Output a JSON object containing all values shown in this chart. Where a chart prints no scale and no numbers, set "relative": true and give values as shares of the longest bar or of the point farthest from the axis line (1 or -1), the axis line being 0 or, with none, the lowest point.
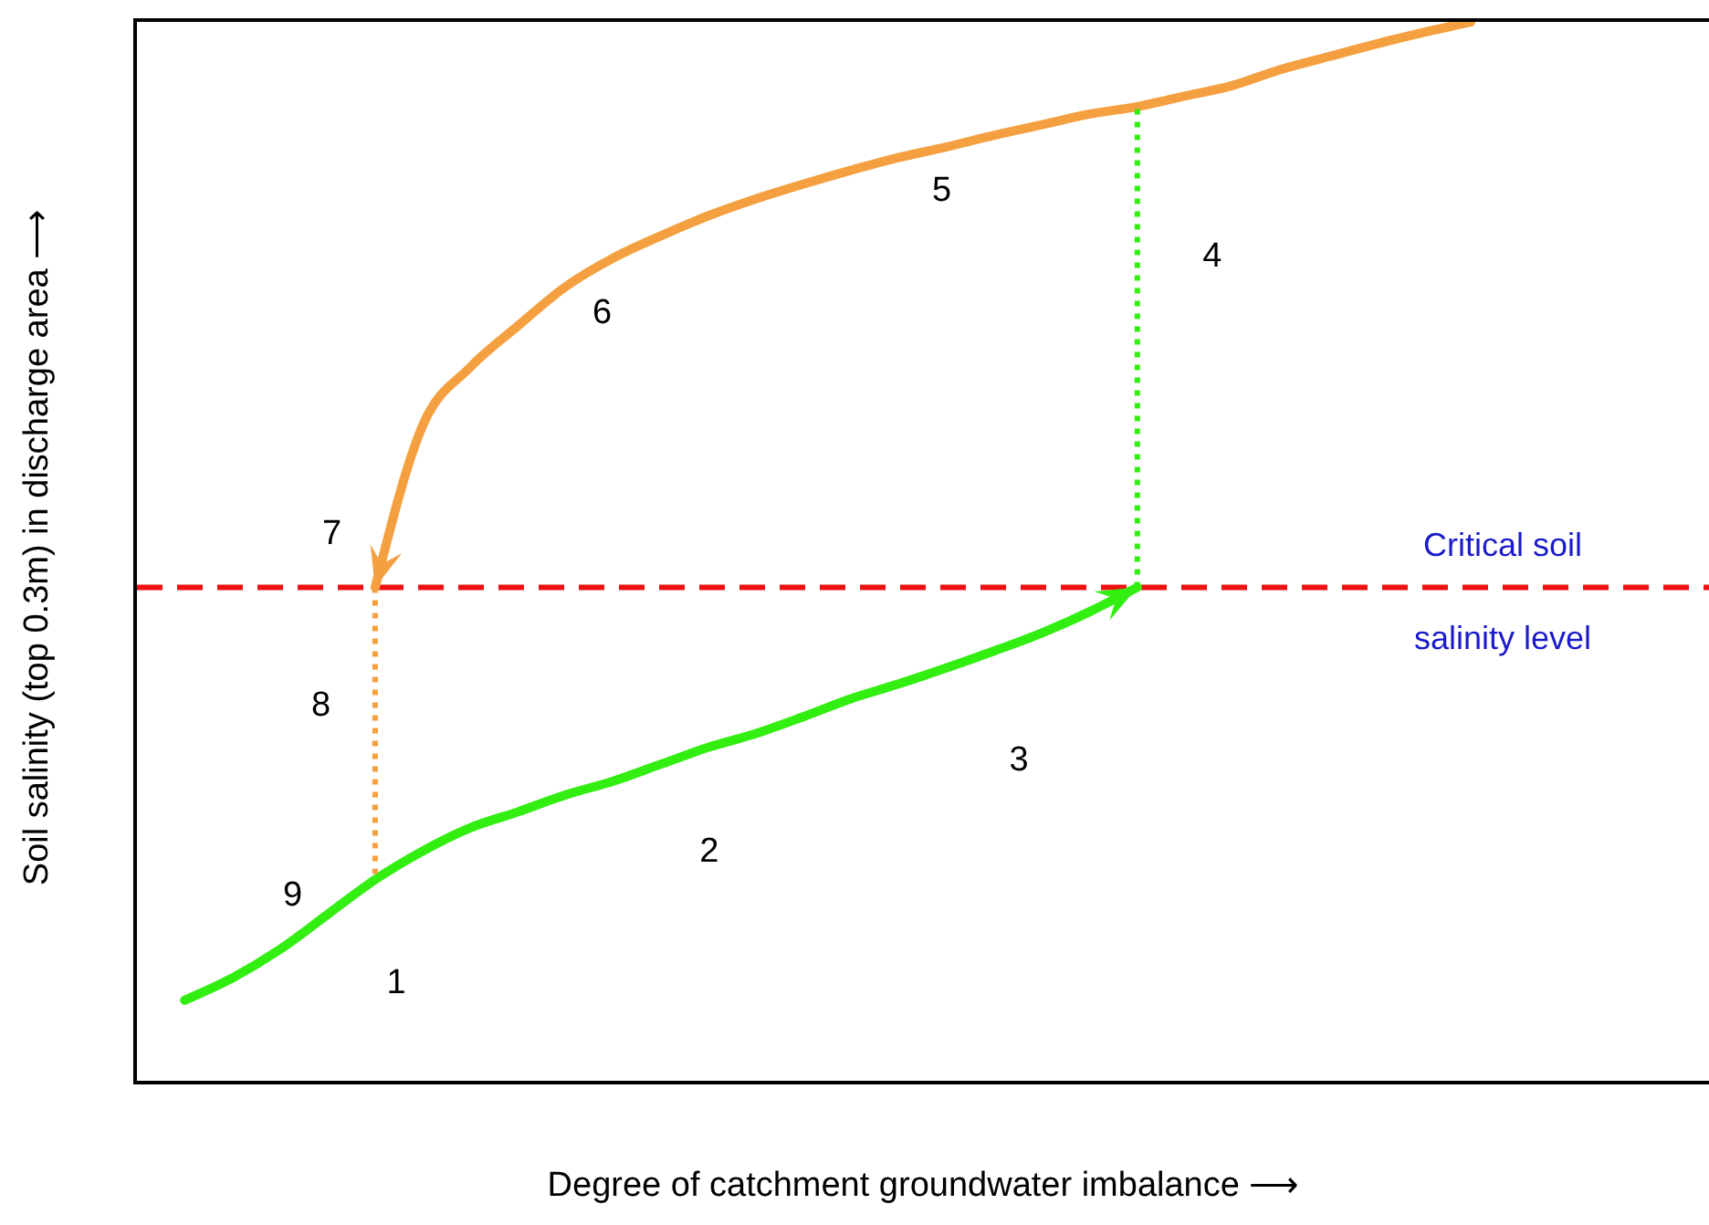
{
  "chart_data": {
    "type": "line",
    "xlabel": "Degree of catchment groundwater imbalance ⟶",
    "ylabel": "Soil salinity (top 0.3m) in discharge area ⟶",
    "relative": true,
    "categories": [
      null,
      null,
      null,
      null,
      null,
      null,
      null,
      null,
      null,
      null,
      null,
      null,
      null,
      null,
      null,
      null,
      null,
      null,
      null,
      null,
      null,
      null,
      null,
      null,
      null,
      null,
      null,
      null,
      null,
      null,
      null,
      null,
      null,
      null
    ],
    "series": [
      {
        "color": "#33ee11",
        "values": [
          null,
          0.076,
          0.097,
          0.124,
          0.157,
          0.19,
          0.217,
          0.239,
          0.254,
          0.27,
          0.283,
          0.299,
          0.315,
          0.328,
          0.344,
          0.361,
          0.375,
          0.39,
          0.406,
          0.423,
          0.443,
          0.466,
          null,
          null,
          null,
          null,
          null,
          null,
          null,
          null,
          null,
          null,
          null,
          null
        ]
      },
      {
        "color": "#f5a040",
        "values": [
          null,
          null,
          null,
          null,
          null,
          0.466,
          0.619,
          0.674,
          0.713,
          0.75,
          0.777,
          0.798,
          0.817,
          0.833,
          0.847,
          0.86,
          0.872,
          0.882,
          0.893,
          0.903,
          0.913,
          0.92,
          0.93,
          0.94,
          0.955,
          0.967,
          0.979,
          0.99,
          1,
          null,
          null,
          null,
          null,
          null
        ]
      }
    ],
    "ref_lines": [
      {
        "axis": "y",
        "value": 0.466,
        "label": "Critical soil\nsalinity level",
        "color": "#ee1111",
        "line_style": "dashed"
      }
    ],
    "annotations": [
      "1",
      "2",
      "3",
      "4",
      "5",
      "6",
      "7",
      "8",
      "9"
    ]
  }
}
